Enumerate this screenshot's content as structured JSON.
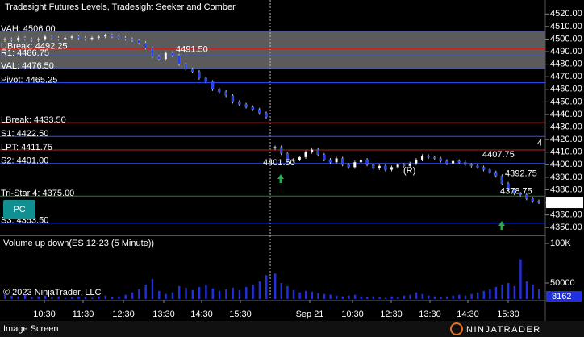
{
  "chart_data": {
    "type": "candlestick",
    "title": "Tradesight Futures Levels, Tradesight Seeker and Comber",
    "ylim": [
      4345,
      4525
    ],
    "yticks": [
      {
        "value": 4520,
        "label": "4520.00"
      },
      {
        "value": 4510,
        "label": "4510.00"
      },
      {
        "value": 4500,
        "label": "4500.00"
      },
      {
        "value": 4490,
        "label": "4490.00"
      },
      {
        "value": 4480,
        "label": "4480.00"
      },
      {
        "value": 4470,
        "label": "4470.00"
      },
      {
        "value": 4460,
        "label": "4460.00"
      },
      {
        "value": 4450,
        "label": "4450.00"
      },
      {
        "value": 4440,
        "label": "4440.00"
      },
      {
        "value": 4430,
        "label": "4430.00"
      },
      {
        "value": 4420,
        "label": "4420.00"
      },
      {
        "value": 4410,
        "label": "4410.00"
      },
      {
        "value": 4400,
        "label": "4400.00"
      },
      {
        "value": 4390,
        "label": "4390.00"
      },
      {
        "value": 4380,
        "label": "4380.00"
      },
      {
        "value": 4370,
        "label": "4370.00"
      },
      {
        "value": 4360,
        "label": "4360.00"
      },
      {
        "value": 4350,
        "label": "4350.00"
      }
    ],
    "levels": [
      {
        "label": "VAH: 4506.00",
        "value": 4506,
        "color": "#3050ff"
      },
      {
        "label": "UBreak: 4492.25",
        "value": 4492.25,
        "color": "#c02020"
      },
      {
        "label": "R1: 4486.75",
        "value": 4486.75,
        "color": "#3050ff"
      },
      {
        "label": "VAL: 4476.50",
        "value": 4476.5,
        "color": "#3050ff"
      },
      {
        "label": "Pivot: 4465.25",
        "value": 4465.25,
        "color": "#3050ff"
      },
      {
        "label": "LBreak: 4433.50",
        "value": 4433.5,
        "color": "#c02020"
      },
      {
        "label": "S1: 4422.50",
        "value": 4422.5,
        "color": "#3050ff"
      },
      {
        "label": "LPT: 4411.75",
        "value": 4411.75,
        "color": "#c02020"
      },
      {
        "label": "S2: 4401.00",
        "value": 4401,
        "color": "#3050ff"
      },
      {
        "label": "Tri-Star 4: 4375.00",
        "value": 4375,
        "color": "#1a8a1a"
      },
      {
        "label": "S3: 4353.50",
        "value": 4353.5,
        "color": "#3050ff"
      }
    ],
    "annotations": [
      {
        "label": "4491.50",
        "value": 4491.5,
        "color": "#e02020"
      },
      {
        "label": "4401.50",
        "value": 4401.5,
        "color": "#e040e0"
      },
      {
        "label": "4407.75",
        "value": 4407.75,
        "color": "#20a020"
      },
      {
        "label": "4392.75",
        "value": 4392.75,
        "color": "#20a020"
      },
      {
        "label": "4378.75",
        "value": 4378.75,
        "color": "#e040e0"
      },
      {
        "label": "(R)",
        "color": "#e02020"
      },
      {
        "label": "4",
        "color": "#e02020"
      }
    ],
    "last_price": {
      "value": 4370,
      "label": "4370.00"
    },
    "sessions": [
      {
        "closes": [
          4500,
          4499,
          4501,
          4500,
          4499,
          4500,
          4502,
          4501,
          4500,
          4501,
          4502,
          4501,
          4500,
          4501,
          4502,
          4503,
          4502,
          4501,
          4500,
          4499,
          4497,
          4493,
          4486,
          4484,
          4489,
          4487,
          4480,
          4476,
          4474,
          4469,
          4466,
          4460,
          4458,
          4455,
          4450,
          4448,
          4446,
          4444,
          4441,
          4438
        ],
        "volume": [
          36000,
          34000,
          33000,
          35000,
          32000,
          33000,
          34000,
          32000,
          33000,
          31000,
          32000,
          33000,
          32000,
          31000,
          33000,
          34000,
          32000,
          33000,
          35000,
          38000,
          42000,
          48000,
          55000,
          40000,
          36000,
          38000,
          46000,
          44000,
          41000,
          45000,
          47000,
          43000,
          40000,
          42000,
          44000,
          41000,
          45000,
          48000,
          52000,
          60000
        ]
      },
      {
        "closes": [
          4414,
          4409,
          4403,
          4404,
          4406,
          4410,
          4412,
          4408,
          4404,
          4402,
          4405,
          4400,
          4398,
          4402,
          4404,
          4400,
          4397,
          4399,
          4396,
          4398,
          4400,
          4399,
          4401,
          4404,
          4407,
          4406,
          4405,
          4403,
          4401,
          4403,
          4402,
          4400,
          4399,
          4398,
          4396,
          4394,
          4391,
          4385,
          4380,
          4377,
          4376,
          4373,
          4371,
          4370
        ],
        "volume": [
          62000,
          50000,
          46000,
          41000,
          38000,
          40000,
          39000,
          37000,
          36000,
          35000,
          34000,
          33000,
          34000,
          35000,
          33000,
          32000,
          33000,
          32000,
          31000,
          33000,
          32000,
          34000,
          35000,
          38000,
          36000,
          34000,
          33000,
          32000,
          33000,
          34000,
          35000,
          34000,
          36000,
          38000,
          40000,
          42000,
          45000,
          48000,
          50000,
          46000,
          80000,
          52000,
          48000,
          42000
        ]
      }
    ],
    "xticks": [
      "10:30",
      "11:30",
      "12:30",
      "13:30",
      "14:30",
      "15:30",
      "Sep 21",
      "10:30",
      "12:30",
      "13:30",
      "14:30",
      "15:30"
    ],
    "volume_title": "Volume up down(ES 12-23 (5 Minute))",
    "volume_ticks": [
      {
        "value": 100000,
        "label": "100K"
      },
      {
        "value": 50000,
        "label": "50000"
      }
    ],
    "volume_last": "8162",
    "copyright": "© 2023 NinjaTrader, LLC",
    "button": "PC",
    "footer": "Image Screen",
    "brand": "NINJATRADER"
  }
}
